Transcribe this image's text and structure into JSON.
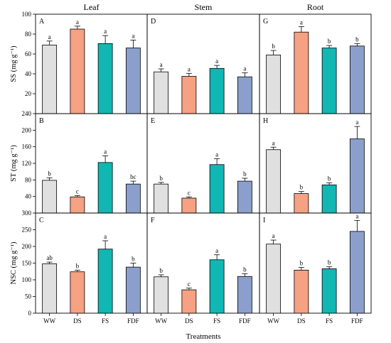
{
  "chart_data": {
    "type": "bar",
    "categories": [
      "WW",
      "DS",
      "FS",
      "FDF"
    ],
    "colors": [
      "#e0e0e0",
      "#f6a182",
      "#11b7b3",
      "#8c9fcc"
    ],
    "columns": [
      "Leaf",
      "Stem",
      "Root"
    ],
    "xlabel": "Treatments",
    "rows": [
      {
        "ylabel": "SS (mg g⁻¹)",
        "ylim": [
          0,
          100
        ],
        "yticks": [
          20,
          40,
          60,
          80,
          100
        ],
        "panels": [
          {
            "letter": "A",
            "values": [
              69,
              85,
              70.5,
              66
            ],
            "errors": [
              4,
              3,
              8,
              8
            ],
            "sig": [
              "a",
              "a",
              "a",
              "a"
            ]
          },
          {
            "letter": "D",
            "values": [
              42,
              37.5,
              45.5,
              37
            ],
            "errors": [
              3,
              3,
              3,
              4
            ],
            "sig": [
              "a",
              "a",
              "a",
              "a"
            ]
          },
          {
            "letter": "G",
            "values": [
              59,
              82,
              66,
              68
            ],
            "errors": [
              4.5,
              5.5,
              2.5,
              2.5
            ],
            "sig": [
              "b",
              "a",
              "b",
              "b"
            ]
          }
        ]
      },
      {
        "ylabel": "ST (mg g⁻¹)",
        "ylim": [
          0,
          240
        ],
        "yticks": [
          40,
          80,
          120,
          160,
          200,
          240
        ],
        "panels": [
          {
            "letter": "B",
            "values": [
              79,
              39,
              122,
              70
            ],
            "errors": [
              6,
              3,
              16,
              7
            ],
            "sig": [
              "b",
              "c",
              "a",
              "bc"
            ]
          },
          {
            "letter": "E",
            "values": [
              70,
              36,
              117,
              77
            ],
            "errors": [
              4,
              3,
              14,
              7
            ],
            "sig": [
              "b",
              "c",
              "a",
              "b"
            ]
          },
          {
            "letter": "H",
            "values": [
              153,
              47,
              68,
              179
            ],
            "errors": [
              6,
              5,
              5,
              30
            ],
            "sig": [
              "a",
              "b",
              "b",
              "a"
            ]
          }
        ]
      },
      {
        "ylabel": "NSC (mg g⁻¹)",
        "ylim": [
          0,
          300
        ],
        "yticks": [
          0,
          50,
          100,
          150,
          200,
          250,
          300
        ],
        "panels": [
          {
            "letter": "C",
            "values": [
              148,
              124,
              192,
              138
            ],
            "errors": [
              5,
              5,
              25,
              12
            ],
            "sig": [
              "ab",
              "b",
              "a",
              "b"
            ]
          },
          {
            "letter": "F",
            "values": [
              109,
              70,
              160,
              110
            ],
            "errors": [
              6,
              5,
              15,
              8
            ],
            "sig": [
              "b",
              "c",
              "a",
              "b"
            ]
          },
          {
            "letter": "I",
            "values": [
              207,
              129,
              133,
              245
            ],
            "errors": [
              12,
              8,
              6,
              33
            ],
            "sig": [
              "a",
              "b",
              "b",
              "a"
            ]
          }
        ]
      }
    ]
  }
}
